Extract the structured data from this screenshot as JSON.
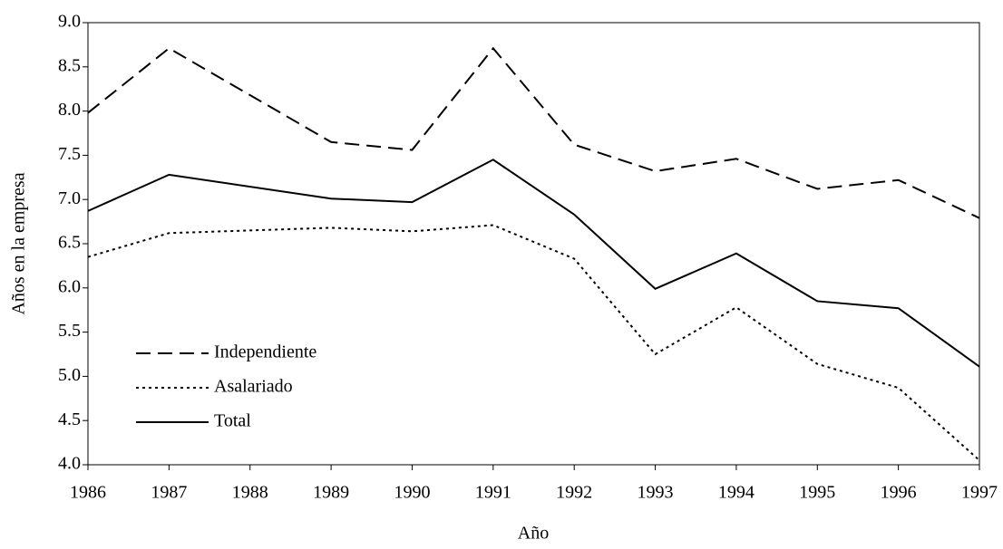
{
  "chart_data": {
    "type": "line",
    "x_label": "Año",
    "y_label": "Años en la empresa",
    "x": [
      1986,
      1987,
      1989,
      1990,
      1991,
      1992,
      1993,
      1994,
      1995,
      1996,
      1997
    ],
    "series": [
      {
        "name": "Independiente",
        "color": "#000000",
        "dash": "dashed",
        "values": [
          7.98,
          8.71,
          7.65,
          7.56,
          8.71,
          7.62,
          7.32,
          7.46,
          7.12,
          7.22,
          6.79
        ]
      },
      {
        "name": "Asalariado",
        "color": "#000000",
        "dash": "dotted",
        "values": [
          6.35,
          6.62,
          6.68,
          6.64,
          6.71,
          6.33,
          5.25,
          5.78,
          5.14,
          4.87,
          4.05
        ]
      },
      {
        "name": "Total",
        "color": "#000000",
        "dash": "solid",
        "values": [
          6.87,
          7.28,
          7.01,
          6.97,
          7.45,
          6.83,
          5.99,
          6.39,
          5.85,
          5.77,
          5.11
        ]
      }
    ],
    "xlim": [
      1986,
      1997
    ],
    "xticks": [
      1986,
      1987,
      1988,
      1989,
      1990,
      1991,
      1992,
      1993,
      1994,
      1995,
      1996,
      1997
    ],
    "ylim": [
      4,
      9
    ],
    "yticks": [
      {
        "value": 4,
        "label": "4.0"
      },
      4.5,
      {
        "value": 5,
        "label": "5.0"
      },
      5.5,
      {
        "value": 6,
        "label": "6.0"
      },
      6.5,
      {
        "value": 7,
        "label": "7.0"
      },
      7.5,
      {
        "value": 8,
        "label": "8.0"
      },
      8.5,
      {
        "value": 9,
        "label": "9.0"
      }
    ],
    "grid": false
  }
}
